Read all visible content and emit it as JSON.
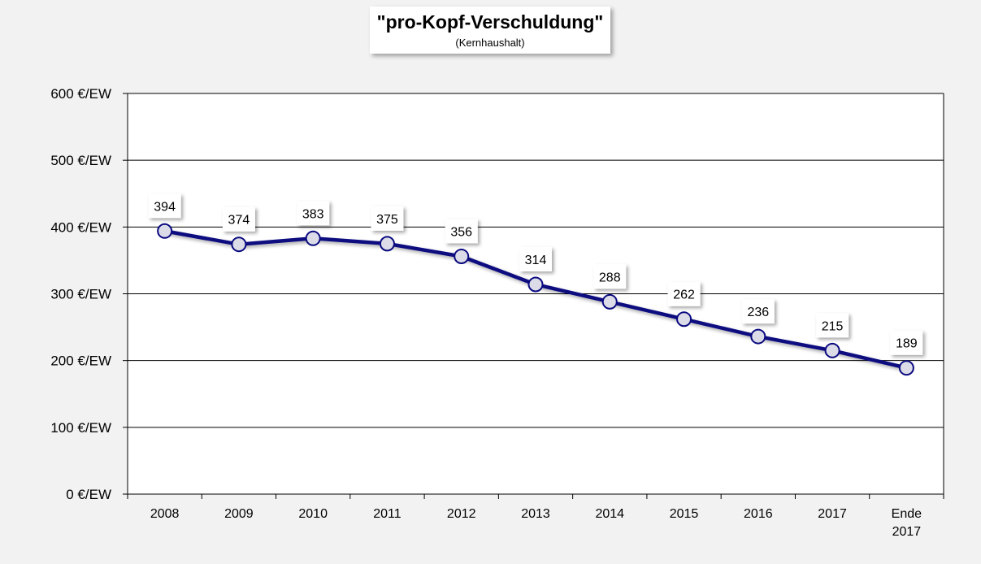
{
  "chart_data": {
    "type": "line",
    "title": "\"pro-Kopf-Verschuldung\"",
    "subtitle": "(Kernhaushalt)",
    "categories": [
      "2008",
      "2009",
      "2010",
      "2011",
      "2012",
      "2013",
      "2014",
      "2015",
      "2016",
      "2017",
      "Ende 2017"
    ],
    "series": [
      {
        "values": [
          394,
          374,
          383,
          375,
          356,
          314,
          288,
          262,
          236,
          215,
          189
        ]
      }
    ],
    "y_ticks": [
      "0 €/EW",
      "100 €/EW",
      "200 €/EW",
      "300 €/EW",
      "400 €/EW",
      "500 €/EW",
      "600 €/EW"
    ],
    "ylim": [
      0,
      600
    ],
    "grid": true,
    "line_color": "#0a0a80",
    "marker_fill": "#dcdce8"
  }
}
